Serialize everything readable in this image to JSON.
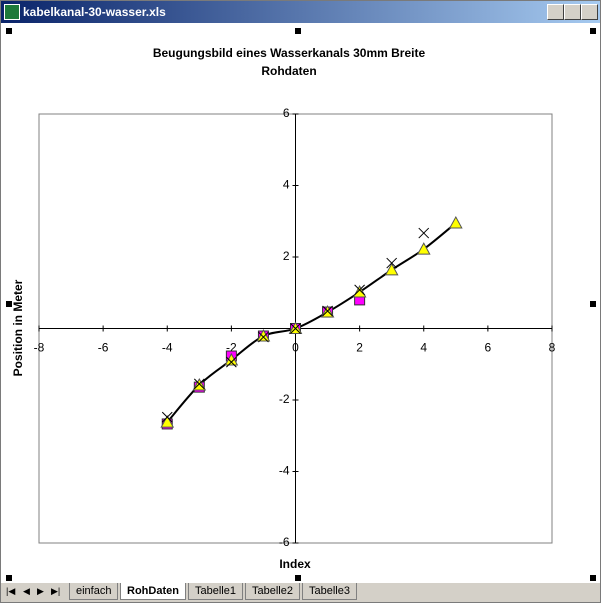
{
  "window": {
    "title": "kabelkanal-30-wasser.xls"
  },
  "tabs": [
    "einfach",
    "RohDaten",
    "Tabelle1",
    "Tabelle2",
    "Tabelle3"
  ],
  "active_tab": 1,
  "chart_data": {
    "type": "scatter",
    "title": "Beugungsbild eines Wasserkanals 30mm Breite",
    "subtitle": "Rohdaten",
    "x_label": "Index",
    "y_label": "Position in Meter",
    "xlim": [
      -8,
      8
    ],
    "ylim": [
      -6,
      6
    ],
    "xticks": [
      -8,
      -6,
      -4,
      -2,
      0,
      2,
      4,
      6,
      8
    ],
    "yticks": [
      -6,
      -4,
      -2,
      2,
      4,
      6
    ],
    "series": [
      {
        "marker": "square",
        "color": "#ff00ff",
        "line": false,
        "x": [
          -4,
          -3,
          -2,
          -1,
          0,
          1,
          2
        ],
        "values": [
          -2.67,
          -1.64,
          -0.77,
          -0.21,
          0,
          0.46,
          0.8
        ]
      },
      {
        "marker": "triangle",
        "color": "#ffff00",
        "line": true,
        "x": [
          -4,
          -3,
          -2,
          -1,
          0,
          1,
          2,
          3,
          4,
          5
        ],
        "values": [
          -2.62,
          -1.58,
          -0.88,
          -0.21,
          0,
          0.46,
          1.02,
          1.64,
          2.22,
          2.95
        ]
      },
      {
        "marker": "cross",
        "color": "#000000",
        "line": false,
        "x": [
          -4,
          -3,
          -2,
          -1,
          0,
          1,
          2,
          3,
          4
        ],
        "values": [
          -2.48,
          -1.55,
          -0.94,
          -0.24,
          0,
          0.49,
          1.08,
          1.83,
          2.67
        ]
      }
    ]
  }
}
